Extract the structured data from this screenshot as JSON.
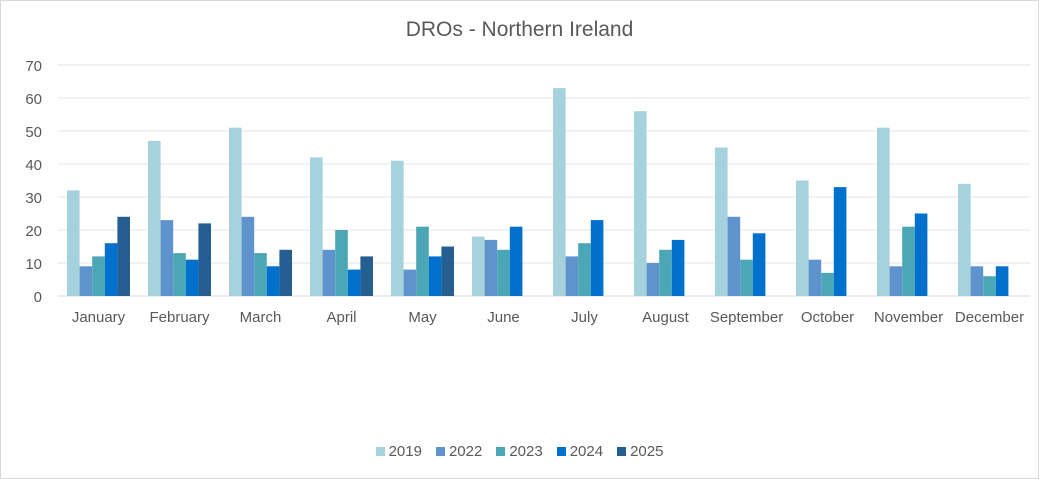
{
  "chart_data": {
    "type": "bar",
    "title": "DROs - Northern Ireland",
    "xlabel": "",
    "ylabel": "",
    "ylim": [
      0,
      70
    ],
    "yticks": [
      0,
      10,
      20,
      30,
      40,
      50,
      60,
      70
    ],
    "grid": true,
    "legend_placement": "bottom",
    "categories": [
      "January",
      "February",
      "March",
      "April",
      "May",
      "June",
      "July",
      "August",
      "September",
      "October",
      "November",
      "December"
    ],
    "series": [
      {
        "name": "2019",
        "color": "#A5D2DC",
        "values": [
          32,
          47,
          51,
          42,
          41,
          18,
          63,
          56,
          45,
          35,
          51,
          34
        ]
      },
      {
        "name": "2022",
        "color": "#5F93CD",
        "values": [
          9,
          23,
          24,
          14,
          8,
          17,
          12,
          10,
          24,
          11,
          9,
          9
        ]
      },
      {
        "name": "2023",
        "color": "#4BA6B6",
        "values": [
          12,
          13,
          13,
          20,
          21,
          14,
          16,
          14,
          11,
          7,
          21,
          6
        ]
      },
      {
        "name": "2024",
        "color": "#0070CD",
        "values": [
          16,
          11,
          9,
          8,
          12,
          21,
          23,
          17,
          19,
          33,
          25,
          9
        ]
      },
      {
        "name": "2025",
        "color": "#255E91",
        "values": [
          24,
          22,
          14,
          12,
          15,
          null,
          null,
          null,
          null,
          null,
          null,
          null
        ]
      }
    ]
  }
}
